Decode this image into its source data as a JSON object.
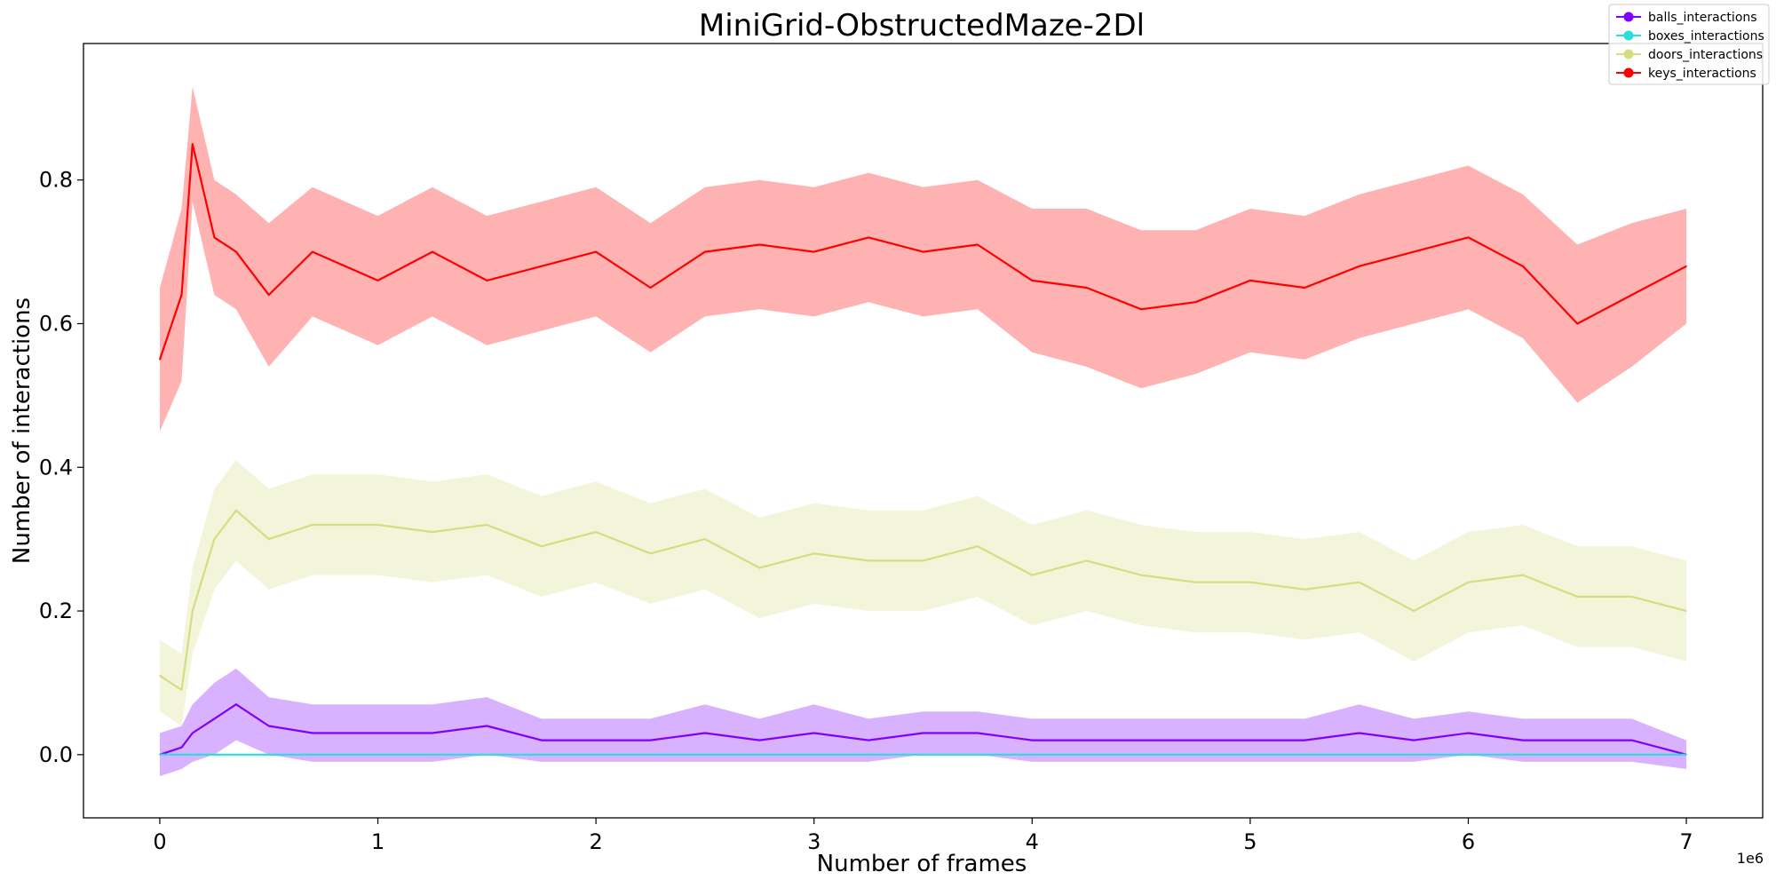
{
  "chart_data": {
    "type": "line",
    "title": "MiniGrid-ObstructedMaze-2Dl",
    "xlabel": "Number of frames",
    "ylabel": "Number of interactions",
    "x_offset_text": "1e6",
    "xlim": [
      -350000,
      7350000
    ],
    "ylim": [
      -0.088,
      0.99
    ],
    "x_ticks": [
      0,
      1000000,
      2000000,
      3000000,
      4000000,
      5000000,
      6000000,
      7000000
    ],
    "x_tick_labels": [
      "0",
      "1",
      "2",
      "3",
      "4",
      "5",
      "6",
      "7"
    ],
    "y_ticks": [
      0.0,
      0.2,
      0.4,
      0.6,
      0.8
    ],
    "y_tick_labels": [
      "0.0",
      "0.2",
      "0.4",
      "0.6",
      "0.8"
    ],
    "legend_position": "top-right",
    "grid": false,
    "x": [
      0,
      100000,
      150000,
      250000,
      350000,
      500000,
      700000,
      1000000,
      1250000,
      1500000,
      1750000,
      2000000,
      2250000,
      2500000,
      2750000,
      3000000,
      3250000,
      3500000,
      3750000,
      4000000,
      4250000,
      4500000,
      4750000,
      5000000,
      5250000,
      5500000,
      5750000,
      6000000,
      6250000,
      6500000,
      6750000,
      7000000
    ],
    "series": [
      {
        "name": "balls_interactions",
        "color": "#8000ff",
        "values": [
          0.0,
          0.01,
          0.03,
          0.05,
          0.07,
          0.04,
          0.03,
          0.03,
          0.03,
          0.04,
          0.02,
          0.02,
          0.02,
          0.03,
          0.02,
          0.03,
          0.02,
          0.03,
          0.03,
          0.02,
          0.02,
          0.02,
          0.02,
          0.02,
          0.02,
          0.03,
          0.02,
          0.03,
          0.02,
          0.02,
          0.02,
          0.0
        ],
        "band": [
          0.03,
          0.03,
          0.04,
          0.05,
          0.05,
          0.04,
          0.04,
          0.04,
          0.04,
          0.04,
          0.03,
          0.03,
          0.03,
          0.04,
          0.03,
          0.04,
          0.03,
          0.03,
          0.03,
          0.03,
          0.03,
          0.03,
          0.03,
          0.03,
          0.03,
          0.04,
          0.03,
          0.03,
          0.03,
          0.03,
          0.03,
          0.02
        ]
      },
      {
        "name": "boxes_interactions",
        "color": "#2adddd",
        "values": [
          0,
          0,
          0,
          0,
          0,
          0,
          0,
          0,
          0,
          0,
          0,
          0,
          0,
          0,
          0,
          0,
          0,
          0,
          0,
          0,
          0,
          0,
          0,
          0,
          0,
          0,
          0,
          0,
          0,
          0,
          0,
          0
        ],
        "band": [
          0,
          0,
          0,
          0,
          0,
          0,
          0,
          0,
          0,
          0,
          0,
          0,
          0,
          0,
          0,
          0,
          0,
          0,
          0,
          0,
          0,
          0,
          0,
          0,
          0,
          0,
          0,
          0,
          0,
          0,
          0,
          0
        ]
      },
      {
        "name": "doors_interactions",
        "color": "#d4dd80",
        "values": [
          0.11,
          0.09,
          0.2,
          0.3,
          0.34,
          0.3,
          0.32,
          0.32,
          0.31,
          0.32,
          0.29,
          0.31,
          0.28,
          0.3,
          0.26,
          0.28,
          0.27,
          0.27,
          0.29,
          0.25,
          0.27,
          0.25,
          0.24,
          0.24,
          0.23,
          0.24,
          0.2,
          0.24,
          0.25,
          0.22,
          0.22,
          0.2
        ],
        "band": [
          0.05,
          0.05,
          0.06,
          0.07,
          0.07,
          0.07,
          0.07,
          0.07,
          0.07,
          0.07,
          0.07,
          0.07,
          0.07,
          0.07,
          0.07,
          0.07,
          0.07,
          0.07,
          0.07,
          0.07,
          0.07,
          0.07,
          0.07,
          0.07,
          0.07,
          0.07,
          0.07,
          0.07,
          0.07,
          0.07,
          0.07,
          0.07
        ]
      },
      {
        "name": "keys_interactions",
        "color": "#ff0000",
        "values": [
          0.55,
          0.64,
          0.85,
          0.72,
          0.7,
          0.64,
          0.7,
          0.66,
          0.7,
          0.66,
          0.68,
          0.7,
          0.65,
          0.7,
          0.71,
          0.7,
          0.72,
          0.7,
          0.71,
          0.66,
          0.65,
          0.62,
          0.63,
          0.66,
          0.65,
          0.68,
          0.7,
          0.72,
          0.68,
          0.6,
          0.64,
          0.68
        ],
        "band": [
          0.1,
          0.12,
          0.08,
          0.08,
          0.08,
          0.1,
          0.09,
          0.09,
          0.09,
          0.09,
          0.09,
          0.09,
          0.09,
          0.09,
          0.09,
          0.09,
          0.09,
          0.09,
          0.09,
          0.1,
          0.11,
          0.11,
          0.1,
          0.1,
          0.1,
          0.1,
          0.1,
          0.1,
          0.1,
          0.11,
          0.1,
          0.08
        ]
      }
    ]
  }
}
